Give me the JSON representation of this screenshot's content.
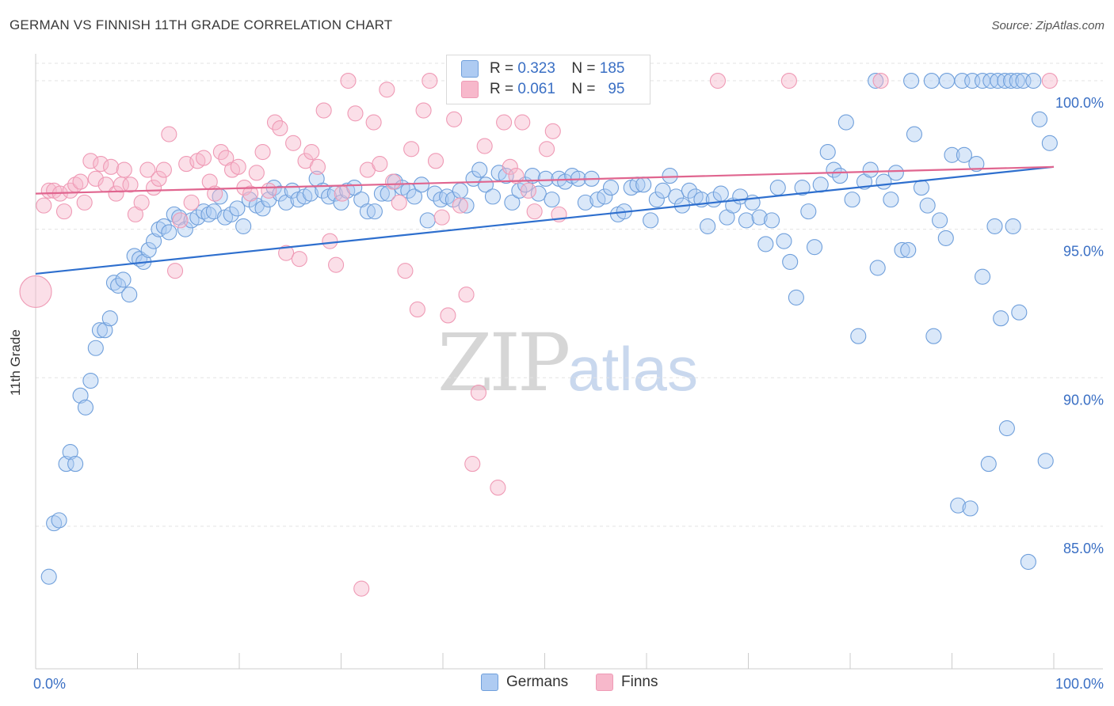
{
  "header": {
    "title": "GERMAN VS FINNISH 11TH GRADE CORRELATION CHART",
    "source": "Source: ZipAtlas.com"
  },
  "watermark": {
    "zip": "ZIP",
    "atlas": "atlas"
  },
  "legend": {
    "rows": [
      {
        "r_label": "R =",
        "r_value": "0.323",
        "n_label": "N =",
        "n_value": "185",
        "color": "#aecbf2"
      },
      {
        "r_label": "R =",
        "r_value": "0.061",
        "n_label": "N =",
        "n_value": "95",
        "color": "#f7b8cb"
      }
    ]
  },
  "bottom_legend": {
    "germans": "Germans",
    "finns": "Finns"
  },
  "chart_data": {
    "type": "scatter",
    "title": "GERMAN VS FINNISH 11TH GRADE CORRELATION CHART",
    "xlabel": "",
    "ylabel": "11th Grade",
    "xlim": [
      0,
      100
    ],
    "ylim": [
      80.2,
      100.8
    ],
    "x_tick_labels": [
      "0.0%",
      "100.0%"
    ],
    "y_ticks": [
      85,
      90,
      95,
      100
    ],
    "y_tick_labels": [
      "85.0%",
      "90.0%",
      "95.0%",
      "100.0%"
    ],
    "grid": true,
    "legend_position": "top-center",
    "series": [
      {
        "name": "Germans",
        "color": "#6f9fdb",
        "fill": "#aecbf2",
        "trend": {
          "x": [
            0,
            100
          ],
          "y": [
            93.5,
            97.1
          ],
          "color": "#2e6fce"
        },
        "points": [
          [
            1.3,
            83.3
          ],
          [
            1.8,
            85.1
          ],
          [
            2.3,
            85.2
          ],
          [
            3.0,
            87.1
          ],
          [
            3.4,
            87.5
          ],
          [
            3.9,
            87.1
          ],
          [
            4.4,
            89.4
          ],
          [
            4.9,
            89.0
          ],
          [
            5.4,
            89.9
          ],
          [
            5.9,
            91.0
          ],
          [
            6.3,
            91.6
          ],
          [
            6.8,
            91.6
          ],
          [
            7.3,
            92.0
          ],
          [
            7.7,
            93.2
          ],
          [
            8.1,
            93.1
          ],
          [
            8.6,
            93.3
          ],
          [
            9.2,
            92.8
          ],
          [
            9.7,
            94.1
          ],
          [
            10.2,
            94.0
          ],
          [
            10.6,
            93.9
          ],
          [
            11.1,
            94.3
          ],
          [
            11.6,
            94.6
          ],
          [
            12.1,
            95.0
          ],
          [
            12.6,
            95.1
          ],
          [
            13.1,
            94.9
          ],
          [
            13.6,
            95.5
          ],
          [
            14.1,
            95.4
          ],
          [
            14.7,
            95.0
          ],
          [
            15.3,
            95.3
          ],
          [
            15.9,
            95.4
          ],
          [
            16.5,
            95.6
          ],
          [
            17.0,
            95.5
          ],
          [
            17.5,
            95.6
          ],
          [
            18.1,
            96.1
          ],
          [
            18.6,
            95.4
          ],
          [
            19.2,
            95.5
          ],
          [
            19.8,
            95.7
          ],
          [
            20.4,
            95.1
          ],
          [
            21.0,
            96.0
          ],
          [
            21.7,
            95.8
          ],
          [
            22.3,
            95.7
          ],
          [
            22.9,
            96.0
          ],
          [
            23.4,
            96.4
          ],
          [
            24.0,
            96.2
          ],
          [
            24.6,
            95.9
          ],
          [
            25.2,
            96.3
          ],
          [
            25.8,
            96.0
          ],
          [
            26.4,
            96.1
          ],
          [
            27.0,
            96.2
          ],
          [
            27.6,
            96.7
          ],
          [
            28.2,
            96.3
          ],
          [
            28.8,
            96.1
          ],
          [
            29.4,
            96.2
          ],
          [
            30.0,
            95.9
          ],
          [
            30.6,
            96.3
          ],
          [
            31.3,
            96.4
          ],
          [
            32.0,
            96.0
          ],
          [
            32.6,
            95.6
          ],
          [
            33.3,
            95.6
          ],
          [
            34.0,
            96.2
          ],
          [
            34.6,
            96.2
          ],
          [
            35.3,
            96.6
          ],
          [
            36.0,
            96.4
          ],
          [
            36.6,
            96.3
          ],
          [
            37.2,
            96.1
          ],
          [
            37.9,
            96.5
          ],
          [
            38.5,
            95.3
          ],
          [
            39.2,
            96.2
          ],
          [
            39.8,
            96.0
          ],
          [
            40.4,
            96.1
          ],
          [
            41.0,
            96.0
          ],
          [
            41.7,
            96.3
          ],
          [
            42.3,
            95.8
          ],
          [
            43.0,
            96.7
          ],
          [
            43.6,
            97.0
          ],
          [
            44.2,
            96.5
          ],
          [
            44.9,
            96.1
          ],
          [
            45.5,
            96.9
          ],
          [
            46.2,
            96.8
          ],
          [
            46.8,
            95.9
          ],
          [
            47.5,
            96.3
          ],
          [
            48.1,
            96.5
          ],
          [
            48.8,
            96.8
          ],
          [
            49.4,
            96.2
          ],
          [
            50.1,
            96.7
          ],
          [
            50.7,
            96.0
          ],
          [
            51.4,
            96.7
          ],
          [
            52.0,
            96.6
          ],
          [
            52.7,
            96.8
          ],
          [
            53.3,
            96.7
          ],
          [
            54.0,
            95.9
          ],
          [
            54.6,
            96.7
          ],
          [
            55.2,
            96.0
          ],
          [
            55.9,
            96.1
          ],
          [
            56.5,
            96.4
          ],
          [
            57.2,
            95.5
          ],
          [
            57.8,
            95.6
          ],
          [
            58.5,
            96.4
          ],
          [
            59.1,
            96.5
          ],
          [
            59.7,
            96.5
          ],
          [
            60.4,
            95.3
          ],
          [
            61.0,
            96.0
          ],
          [
            61.6,
            96.3
          ],
          [
            62.3,
            96.8
          ],
          [
            62.9,
            96.1
          ],
          [
            63.5,
            95.8
          ],
          [
            64.2,
            96.3
          ],
          [
            64.8,
            96.1
          ],
          [
            65.4,
            96.0
          ],
          [
            66.0,
            95.1
          ],
          [
            66.6,
            96.0
          ],
          [
            67.3,
            96.2
          ],
          [
            67.9,
            95.4
          ],
          [
            68.5,
            95.8
          ],
          [
            69.2,
            96.1
          ],
          [
            69.8,
            95.3
          ],
          [
            70.4,
            95.9
          ],
          [
            71.1,
            95.4
          ],
          [
            71.7,
            94.5
          ],
          [
            72.3,
            95.3
          ],
          [
            72.9,
            96.4
          ],
          [
            73.5,
            94.6
          ],
          [
            74.1,
            93.9
          ],
          [
            74.7,
            92.7
          ],
          [
            75.3,
            96.4
          ],
          [
            75.9,
            95.6
          ],
          [
            76.5,
            94.4
          ],
          [
            77.1,
            96.5
          ],
          [
            77.8,
            97.6
          ],
          [
            78.4,
            97.0
          ],
          [
            79.0,
            96.8
          ],
          [
            79.6,
            98.6
          ],
          [
            80.2,
            96.0
          ],
          [
            80.8,
            91.4
          ],
          [
            81.4,
            96.6
          ],
          [
            82.0,
            97.0
          ],
          [
            82.7,
            93.7
          ],
          [
            83.3,
            96.6
          ],
          [
            84.0,
            96.0
          ],
          [
            84.5,
            96.9
          ],
          [
            85.1,
            94.3
          ],
          [
            85.7,
            94.3
          ],
          [
            86.3,
            98.2
          ],
          [
            87.0,
            96.4
          ],
          [
            87.6,
            95.8
          ],
          [
            88.2,
            91.4
          ],
          [
            88.8,
            95.3
          ],
          [
            89.4,
            94.7
          ],
          [
            90.0,
            97.5
          ],
          [
            90.6,
            85.7
          ],
          [
            91.2,
            97.5
          ],
          [
            91.8,
            85.6
          ],
          [
            92.4,
            97.2
          ],
          [
            93.0,
            93.4
          ],
          [
            93.6,
            87.1
          ],
          [
            94.2,
            95.1
          ],
          [
            94.8,
            92.0
          ],
          [
            95.4,
            88.3
          ],
          [
            96.0,
            95.1
          ],
          [
            96.6,
            92.2
          ],
          [
            82.5,
            100.0
          ],
          [
            86.0,
            100.0
          ],
          [
            88.0,
            100.0
          ],
          [
            89.5,
            100.0
          ],
          [
            91.0,
            100.0
          ],
          [
            92.0,
            100.0
          ],
          [
            93.0,
            100.0
          ],
          [
            93.8,
            100.0
          ],
          [
            94.5,
            100.0
          ],
          [
            95.2,
            100.0
          ],
          [
            95.8,
            100.0
          ],
          [
            96.4,
            100.0
          ],
          [
            97.0,
            100.0
          ],
          [
            97.5,
            83.8
          ],
          [
            98.0,
            100.0
          ],
          [
            98.6,
            98.7
          ],
          [
            99.2,
            87.2
          ],
          [
            99.6,
            97.9
          ]
        ]
      },
      {
        "name": "Finns",
        "color": "#ef9ab5",
        "fill": "#f7b8cb",
        "trend": {
          "x": [
            0,
            100
          ],
          "y": [
            96.2,
            97.1
          ],
          "color": "#e0658f"
        },
        "points": [
          [
            0.0,
            92.9
          ],
          [
            0.8,
            95.8
          ],
          [
            1.3,
            96.3
          ],
          [
            1.8,
            96.3
          ],
          [
            2.4,
            96.2
          ],
          [
            2.8,
            95.6
          ],
          [
            3.4,
            96.3
          ],
          [
            3.9,
            96.5
          ],
          [
            4.4,
            96.6
          ],
          [
            4.8,
            95.9
          ],
          [
            5.4,
            97.3
          ],
          [
            5.9,
            96.7
          ],
          [
            6.4,
            97.2
          ],
          [
            6.9,
            96.5
          ],
          [
            7.4,
            97.1
          ],
          [
            7.9,
            96.2
          ],
          [
            8.4,
            96.5
          ],
          [
            8.7,
            97.0
          ],
          [
            9.3,
            96.5
          ],
          [
            9.8,
            95.5
          ],
          [
            10.4,
            95.9
          ],
          [
            11.0,
            97.0
          ],
          [
            11.6,
            96.4
          ],
          [
            12.1,
            96.7
          ],
          [
            12.6,
            97.0
          ],
          [
            13.1,
            98.2
          ],
          [
            13.7,
            93.6
          ],
          [
            14.2,
            95.3
          ],
          [
            14.8,
            97.2
          ],
          [
            15.3,
            95.9
          ],
          [
            15.9,
            97.3
          ],
          [
            16.5,
            97.4
          ],
          [
            17.1,
            96.6
          ],
          [
            17.6,
            96.2
          ],
          [
            18.2,
            97.6
          ],
          [
            18.7,
            97.4
          ],
          [
            19.3,
            97.0
          ],
          [
            19.9,
            97.1
          ],
          [
            20.5,
            96.4
          ],
          [
            21.1,
            96.2
          ],
          [
            21.7,
            96.9
          ],
          [
            22.3,
            97.6
          ],
          [
            22.9,
            96.3
          ],
          [
            23.5,
            98.6
          ],
          [
            24.0,
            98.4
          ],
          [
            24.6,
            94.2
          ],
          [
            25.3,
            97.9
          ],
          [
            25.9,
            94.0
          ],
          [
            26.5,
            97.3
          ],
          [
            27.1,
            97.6
          ],
          [
            27.7,
            97.1
          ],
          [
            28.3,
            99.0
          ],
          [
            28.9,
            94.6
          ],
          [
            29.5,
            93.8
          ],
          [
            30.1,
            96.2
          ],
          [
            30.7,
            100.0
          ],
          [
            31.4,
            98.9
          ],
          [
            32.0,
            82.9
          ],
          [
            32.6,
            97.0
          ],
          [
            33.2,
            98.6
          ],
          [
            33.8,
            97.2
          ],
          [
            34.5,
            99.7
          ],
          [
            35.1,
            96.6
          ],
          [
            35.7,
            95.9
          ],
          [
            36.3,
            93.6
          ],
          [
            36.9,
            97.7
          ],
          [
            37.5,
            92.3
          ],
          [
            38.1,
            99.0
          ],
          [
            38.7,
            100.0
          ],
          [
            39.3,
            97.3
          ],
          [
            39.9,
            95.4
          ],
          [
            40.5,
            92.1
          ],
          [
            41.1,
            98.7
          ],
          [
            41.7,
            95.8
          ],
          [
            42.3,
            92.8
          ],
          [
            42.9,
            87.1
          ],
          [
            43.5,
            89.5
          ],
          [
            44.1,
            97.8
          ],
          [
            44.7,
            100.0
          ],
          [
            45.4,
            86.3
          ],
          [
            46.0,
            98.6
          ],
          [
            46.6,
            97.1
          ],
          [
            47.2,
            96.8
          ],
          [
            47.8,
            98.6
          ],
          [
            48.4,
            96.3
          ],
          [
            49.0,
            95.6
          ],
          [
            49.6,
            100.0
          ],
          [
            50.2,
            97.7
          ],
          [
            50.8,
            98.3
          ],
          [
            51.4,
            95.5
          ],
          [
            52.0,
            100.0
          ],
          [
            67.0,
            100.0
          ],
          [
            74.0,
            100.0
          ],
          [
            83.0,
            100.0
          ],
          [
            99.6,
            100.0
          ]
        ]
      }
    ]
  }
}
